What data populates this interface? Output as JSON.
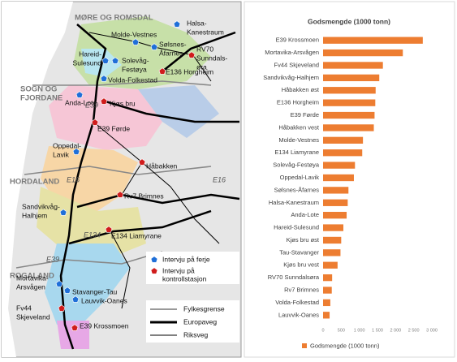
{
  "map": {
    "regions": [
      [
        "MØRE OG ROMSDAL"
      ],
      [
        "SOGN OG",
        "FJORDANE"
      ],
      [
        "HORDALAND"
      ],
      [
        "ROGALAND"
      ]
    ],
    "stations": [
      [
        "Halsa-",
        "Kanestraum"
      ],
      [
        "Molde-Vestnes"
      ],
      [
        "Sølsnes-",
        "Åfarnes"
      ],
      [
        "RV70",
        "Sunndals-",
        "øra"
      ],
      [
        "Hareid-",
        "Sulesund"
      ],
      [
        "Solevåg-",
        "Festøya"
      ],
      [
        "E136 Horgheim"
      ],
      [
        "Volda-Folkestad"
      ],
      [
        "Anda-Lote"
      ],
      [
        "Kjøs bru"
      ],
      [
        "E39 Førde"
      ],
      [
        "Oppedal-",
        "Lavik"
      ],
      [
        "Håbakken"
      ],
      [
        "Sandvikvåg-",
        "Halhjem"
      ],
      [
        "Rv7 Brimnes"
      ],
      [
        "E134 Liamyrane"
      ],
      [
        "Mortavika-",
        "Arsvågen"
      ],
      [
        "Stavanger-Tau"
      ],
      [
        "Lauvvik-Oanes"
      ],
      [
        "Fv44",
        "Skjeveland"
      ],
      [
        "E39 Krossmoen"
      ]
    ],
    "roads": [
      "E39",
      "E16",
      "E16",
      "E134",
      "E39"
    ],
    "legend": [
      [
        "Intervju på ferje"
      ],
      [
        "Intervju på",
        "kontrollstasjon"
      ],
      [
        "Fylkesgrense"
      ],
      [
        "Europaveg"
      ],
      [
        "Riksveg"
      ]
    ]
  },
  "chart_data": {
    "type": "bar",
    "orientation": "horizontal",
    "title": "Godsmengde (1000 tonn)",
    "categories": [
      "E39 Krossmoen",
      "Mortavika-Arsvågen",
      "Fv44 Skjeveland",
      "Sandvikvåg-Halhjem",
      "Håbakken øst",
      "E136 Horgheim",
      "E39 Førde",
      "Håbakken vest",
      "Molde-Vestnes",
      "E134 Liamyrane",
      "Solevåg-Festøya",
      "Oppedal-Lavik",
      "Sølsnes-Åfarnes",
      "Halsa-Kanestraum",
      "Anda-Lote",
      "Hareid-Sulesund",
      "Kjøs bru øst",
      "Tau-Stavanger",
      "Kjøs bru vest",
      "RV70 Sunndalsøra",
      "Rv7 Brimnes",
      "Volda-Folkestad",
      "Lauvvik-Oanes"
    ],
    "series": [
      {
        "name": "Godsmengde (1000 tonn)",
        "color": "#ed7d31",
        "values": [
          2750,
          2200,
          1650,
          1550,
          1450,
          1440,
          1420,
          1400,
          1100,
          1080,
          880,
          850,
          700,
          680,
          650,
          560,
          500,
          480,
          400,
          250,
          240,
          200,
          180
        ]
      }
    ],
    "xlim": [
      0,
      3000
    ],
    "xticks": [
      0,
      500,
      {
        "value": 1000,
        "label": "1 000"
      },
      {
        "value": 1500,
        "label": "1 500"
      },
      {
        "value": 2000,
        "label": "2 000"
      },
      {
        "value": 2500,
        "label": "2 500"
      },
      {
        "value": 3000,
        "label": "3 000"
      }
    ],
    "legend": "bottom"
  }
}
